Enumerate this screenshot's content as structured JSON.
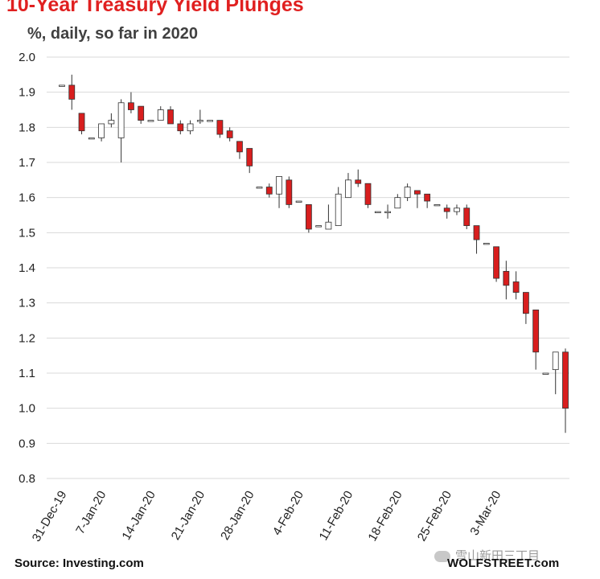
{
  "header": {
    "title": "10-Year Treasury Yield Plunges",
    "subtitle": "%, daily, so far in 2020"
  },
  "footer": {
    "source": "Source: Investing.com",
    "brand": "WOLFSTREET.com",
    "watermark": "雪山新田三丁目"
  },
  "colors": {
    "up": "#ffffff",
    "down": "#d81e1e",
    "wick": "#333333",
    "grid": "#d9d9d9"
  },
  "chart_data": {
    "type": "candlestick",
    "title": "10-Year Treasury Yield Plunges",
    "subtitle": "%, daily, so far in 2020",
    "ylim": [
      0.8,
      2.0
    ],
    "yticks": [
      "0.8",
      "0.9",
      "1.0",
      "1.1",
      "1.2",
      "1.3",
      "1.4",
      "1.5",
      "1.6",
      "1.7",
      "1.8",
      "1.9",
      "2.0"
    ],
    "xtick_labels": [
      "31-Dec-19",
      "7-Jan-20",
      "14-Jan-20",
      "21-Jan-20",
      "28-Jan-20",
      "4-Feb-20",
      "11-Feb-20",
      "18-Feb-20",
      "25-Feb-20",
      "3-Mar-20"
    ],
    "grid": true,
    "candles": [
      {
        "date": "31-Dec-19",
        "open": 1.92,
        "high": 1.92,
        "low": 1.92,
        "close": 1.92
      },
      {
        "date": "2-Jan-20",
        "open": 1.92,
        "high": 1.95,
        "low": 1.85,
        "close": 1.88
      },
      {
        "date": "3-Jan-20",
        "open": 1.84,
        "high": 1.84,
        "low": 1.78,
        "close": 1.79
      },
      {
        "date": "6-Jan-20",
        "open": 1.77,
        "high": 1.77,
        "low": 1.77,
        "close": 1.77
      },
      {
        "date": "7-Jan-20",
        "open": 1.77,
        "high": 1.81,
        "low": 1.76,
        "close": 1.81
      },
      {
        "date": "8-Jan-20",
        "open": 1.81,
        "high": 1.84,
        "low": 1.8,
        "close": 1.82
      },
      {
        "date": "9-Jan-20",
        "open": 1.77,
        "high": 1.88,
        "low": 1.7,
        "close": 1.87
      },
      {
        "date": "10-Jan-20",
        "open": 1.87,
        "high": 1.9,
        "low": 1.84,
        "close": 1.85
      },
      {
        "date": "13-Jan-20",
        "open": 1.86,
        "high": 1.86,
        "low": 1.81,
        "close": 1.82
      },
      {
        "date": "14-Jan-20",
        "open": 1.82,
        "high": 1.82,
        "low": 1.82,
        "close": 1.82
      },
      {
        "date": "15-Jan-20",
        "open": 1.82,
        "high": 1.86,
        "low": 1.82,
        "close": 1.85
      },
      {
        "date": "16-Jan-20",
        "open": 1.85,
        "high": 1.86,
        "low": 1.81,
        "close": 1.81
      },
      {
        "date": "17-Jan-20",
        "open": 1.81,
        "high": 1.82,
        "low": 1.78,
        "close": 1.79
      },
      {
        "date": "20-Jan-20",
        "open": 1.79,
        "high": 1.82,
        "low": 1.78,
        "close": 1.81
      },
      {
        "date": "21-Jan-20",
        "open": 1.82,
        "high": 1.85,
        "low": 1.81,
        "close": 1.82
      },
      {
        "date": "22-Jan-20",
        "open": 1.82,
        "high": 1.82,
        "low": 1.82,
        "close": 1.82
      },
      {
        "date": "23-Jan-20",
        "open": 1.82,
        "high": 1.82,
        "low": 1.77,
        "close": 1.78
      },
      {
        "date": "24-Jan-20",
        "open": 1.79,
        "high": 1.8,
        "low": 1.76,
        "close": 1.77
      },
      {
        "date": "27-Jan-20",
        "open": 1.76,
        "high": 1.76,
        "low": 1.71,
        "close": 1.73
      },
      {
        "date": "28-Jan-20",
        "open": 1.74,
        "high": 1.74,
        "low": 1.67,
        "close": 1.69
      },
      {
        "date": "29-Jan-20",
        "open": 1.63,
        "high": 1.63,
        "low": 1.63,
        "close": 1.63
      },
      {
        "date": "30-Jan-20",
        "open": 1.63,
        "high": 1.64,
        "low": 1.6,
        "close": 1.61
      },
      {
        "date": "31-Jan-20",
        "open": 1.61,
        "high": 1.66,
        "low": 1.57,
        "close": 1.66
      },
      {
        "date": "3-Feb-20",
        "open": 1.65,
        "high": 1.66,
        "low": 1.57,
        "close": 1.58
      },
      {
        "date": "4-Feb-20",
        "open": 1.59,
        "high": 1.59,
        "low": 1.59,
        "close": 1.59
      },
      {
        "date": "5-Feb-20",
        "open": 1.58,
        "high": 1.58,
        "low": 1.5,
        "close": 1.51
      },
      {
        "date": "6-Feb-20",
        "open": 1.52,
        "high": 1.52,
        "low": 1.52,
        "close": 1.52
      },
      {
        "date": "7-Feb-20",
        "open": 1.51,
        "high": 1.58,
        "low": 1.51,
        "close": 1.53
      },
      {
        "date": "10-Feb-20",
        "open": 1.52,
        "high": 1.63,
        "low": 1.52,
        "close": 1.61
      },
      {
        "date": "11-Feb-20",
        "open": 1.6,
        "high": 1.67,
        "low": 1.6,
        "close": 1.65
      },
      {
        "date": "12-Feb-20",
        "open": 1.65,
        "high": 1.68,
        "low": 1.63,
        "close": 1.64
      },
      {
        "date": "13-Feb-20",
        "open": 1.64,
        "high": 1.64,
        "low": 1.57,
        "close": 1.58
      },
      {
        "date": "14-Feb-20",
        "open": 1.56,
        "high": 1.56,
        "low": 1.56,
        "close": 1.56
      },
      {
        "date": "17-Feb-20",
        "open": 1.56,
        "high": 1.58,
        "low": 1.54,
        "close": 1.56
      },
      {
        "date": "18-Feb-20",
        "open": 1.57,
        "high": 1.61,
        "low": 1.57,
        "close": 1.6
      },
      {
        "date": "19-Feb-20",
        "open": 1.6,
        "high": 1.64,
        "low": 1.59,
        "close": 1.63
      },
      {
        "date": "20-Feb-20",
        "open": 1.62,
        "high": 1.62,
        "low": 1.57,
        "close": 1.61
      },
      {
        "date": "21-Feb-20",
        "open": 1.61,
        "high": 1.61,
        "low": 1.57,
        "close": 1.59
      },
      {
        "date": "24-Feb-20",
        "open": 1.58,
        "high": 1.58,
        "low": 1.58,
        "close": 1.58
      },
      {
        "date": "25-Feb-20",
        "open": 1.57,
        "high": 1.58,
        "low": 1.54,
        "close": 1.56
      },
      {
        "date": "26-Feb-20",
        "open": 1.56,
        "high": 1.58,
        "low": 1.55,
        "close": 1.57
      },
      {
        "date": "27-Feb-20",
        "open": 1.57,
        "high": 1.58,
        "low": 1.51,
        "close": 1.52
      },
      {
        "date": "28-Feb-20",
        "open": 1.52,
        "high": 1.52,
        "low": 1.44,
        "close": 1.48
      },
      {
        "date": "2-Mar-20",
        "open": 1.47,
        "high": 1.47,
        "low": 1.47,
        "close": 1.47
      },
      {
        "date": "3-Mar-20",
        "open": 1.46,
        "high": 1.46,
        "low": 1.36,
        "close": 1.37
      },
      {
        "date": "4-Mar-20",
        "open": 1.39,
        "high": 1.42,
        "low": 1.31,
        "close": 1.35
      },
      {
        "date": "5-Mar-20",
        "open": 1.36,
        "high": 1.39,
        "low": 1.31,
        "close": 1.33
      },
      {
        "date": "6-Mar-20",
        "open": 1.33,
        "high": 1.33,
        "low": 1.24,
        "close": 1.27
      },
      {
        "date": "9-Mar-20",
        "open": 1.28,
        "high": 1.28,
        "low": 1.11,
        "close": 1.16
      },
      {
        "date": "10-Mar-20",
        "open": 1.1,
        "high": 1.1,
        "low": 1.1,
        "close": 1.1
      },
      {
        "date": "11-Mar-20",
        "open": 1.11,
        "high": 1.16,
        "low": 1.04,
        "close": 1.16
      },
      {
        "date": "12-Mar-20",
        "open": 1.16,
        "high": 1.17,
        "low": 0.93,
        "close": 1.0
      }
    ]
  }
}
